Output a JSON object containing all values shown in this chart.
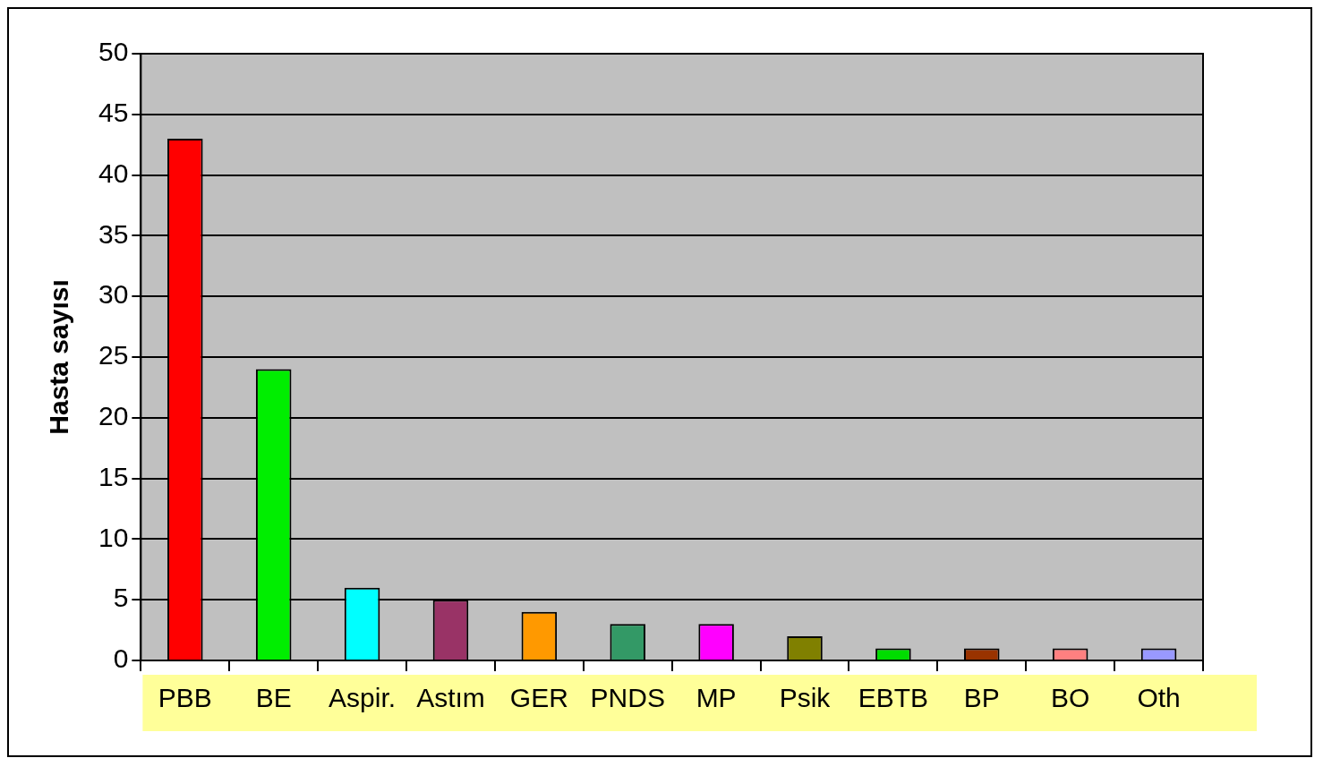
{
  "chart_data": {
    "type": "bar",
    "ylabel": "Hasta sayısı",
    "categories": [
      "PBB",
      "BE",
      "Aspir.",
      "Astım",
      "GER",
      "PNDS",
      "MP",
      "Psik",
      "EBTB",
      "BP",
      "BO",
      "Oth"
    ],
    "values": [
      43,
      24,
      6,
      5,
      4,
      3,
      3,
      2,
      1,
      1,
      1,
      1
    ],
    "colors": [
      "#ff0000",
      "#00ee00",
      "#00ffff",
      "#993366",
      "#ff9900",
      "#339966",
      "#ff00ff",
      "#808000",
      "#00dd00",
      "#993300",
      "#ff8080",
      "#9999ff"
    ],
    "ylim": [
      0,
      50
    ],
    "yticks": [
      0,
      5,
      10,
      15,
      20,
      25,
      30,
      35,
      40,
      45,
      50
    ],
    "grid": "y",
    "legend": false
  }
}
